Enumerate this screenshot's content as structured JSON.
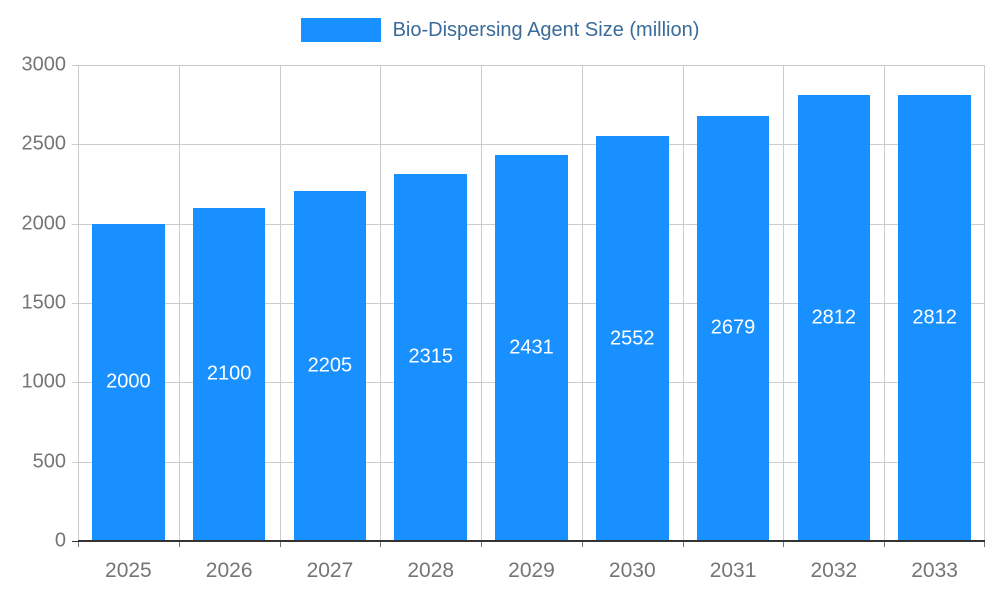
{
  "chart_data": {
    "type": "bar",
    "title": "Bio-Dispersing Agent Size (million)",
    "categories": [
      "2025",
      "2026",
      "2027",
      "2028",
      "2029",
      "2030",
      "2031",
      "2032",
      "2033"
    ],
    "values": [
      2000,
      2100,
      2205,
      2315,
      2431,
      2552,
      2679,
      2812,
      2812
    ],
    "xlabel": "",
    "ylabel": "",
    "ylim": [
      0,
      3000
    ],
    "ytick_step": 500,
    "grid": true,
    "legend_position": "top",
    "colors": {
      "bar": "#1890ff",
      "value_label": "#ffffff",
      "tick_label": "#757575",
      "grid_line": "#cccccc",
      "axis_line": "#333333",
      "legend_text": "#3a6b99"
    }
  }
}
